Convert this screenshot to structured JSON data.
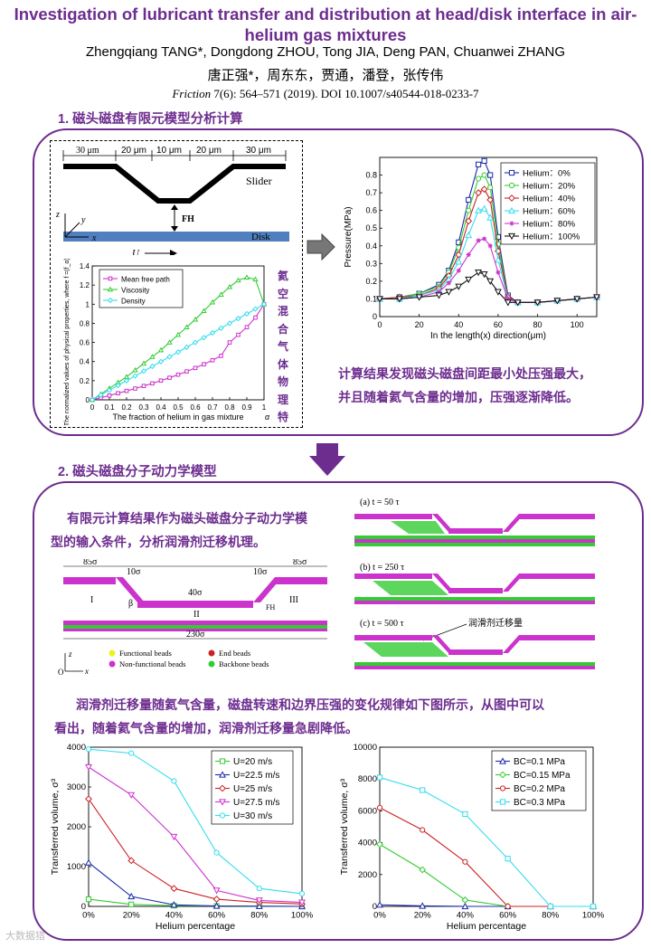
{
  "header": {
    "title": "Investigation of lubricant transfer and distribution at head/disk interface in air-helium gas mixtures",
    "authors": "Zhengqiang TANG*, Dongdong ZHOU, Tong JIA, Deng PAN, Chuanwei ZHANG",
    "authors_cn": "唐正强*，周东东，贾通，潘登，张传伟",
    "journal": "Friction",
    "citation_rest": " 7(6): 564–571 (2019). DOI 10.1007/s40544-018-0233-7"
  },
  "section1": {
    "heading": "1. 磁头磁盘有限元模型分析计算",
    "schematic": {
      "dims": [
        "30 μm",
        "20 μm",
        "10 μm",
        "20 μm",
        "30 μm"
      ],
      "slider": "Slider",
      "fh": "FH",
      "disk": "Disk",
      "u": "U",
      "z": "z",
      "y": "y",
      "x": "x"
    },
    "vertical_note": "氦空混合气体物理特",
    "conclusion_line1": "计算结果发现磁头磁盘间距最小处压强最大，",
    "conclusion_line2": "并且随着氦气含量的增加，压强逐渐降低。"
  },
  "section2": {
    "heading": "2. 磁头磁盘分子动力学模型",
    "intro_line1": "有限元计算结果作为磁头磁盘分子动力学模",
    "intro_line2": "型的输入条件，分析润滑剂迁移机理。",
    "md_dims": [
      "85σ",
      "10σ",
      "40σ",
      "10σ",
      "85σ",
      "230σ"
    ],
    "regions": [
      "I",
      "II",
      "III"
    ],
    "beta": "β",
    "fh": "FH",
    "axes": [
      "z",
      "O",
      "x"
    ],
    "legend": [
      "Functional beads",
      "End beads",
      "Non-functional beads",
      "Backbone beads"
    ],
    "snapshots": [
      "(a) t = 50 τ",
      "(b) t = 250 τ",
      "(c) t = 500 τ"
    ],
    "transfer_label": "润滑剂迁移量",
    "findings_line1": "润滑剂迁移量随氦气含量，磁盘转速和边界压强的变化规律如下图所示，从图中可以",
    "findings_line2": "看出，随着氦气含量的增加，润滑剂迁移量急剧降低。"
  },
  "watermark": "大数据猎",
  "colors": {
    "purple": "#6d2d8f",
    "magenta": "#cc33cc",
    "green": "#33cc33",
    "cyan": "#33ddee",
    "red": "#cc2222",
    "blue": "#1a2aa8",
    "disk_blue": "#4f7fbf"
  },
  "chart_data": [
    {
      "type": "line",
      "xlabel": "The fraction of helium in gas mixture",
      "xlabel_symbol": "α",
      "ylabel": "The normalized values of physical properties, where f =(f_α)/(f_air)",
      "xlim": [
        0,
        1
      ],
      "ylim": [
        0,
        1.4
      ],
      "x": [
        0,
        0.05,
        0.1,
        0.15,
        0.2,
        0.25,
        0.3,
        0.35,
        0.4,
        0.45,
        0.5,
        0.55,
        0.6,
        0.65,
        0.7,
        0.75,
        0.8,
        0.85,
        0.9,
        0.95,
        1.0
      ],
      "xticks": [
        "0",
        "0.1",
        "0.2",
        "0.3",
        "0.4",
        "0.5",
        "0.6",
        "0.7",
        "0.8",
        "0.9",
        "1"
      ],
      "yticks": [
        "0",
        "0.2",
        "0.4",
        "0.6",
        "0.8",
        "1",
        "1.2",
        "1.4"
      ],
      "series": [
        {
          "name": "Mean free path",
          "color": "#cc33cc",
          "marker": "square",
          "values": [
            0.0,
            0.022,
            0.045,
            0.069,
            0.093,
            0.118,
            0.145,
            0.172,
            0.201,
            0.231,
            0.263,
            0.297,
            0.333,
            0.372,
            0.414,
            0.46,
            0.6,
            0.68,
            0.76,
            0.86,
            1.0
          ]
        },
        {
          "name": "Viscosity",
          "color": "#33cc33",
          "marker": "triangle",
          "values": [
            0.0,
            0.06,
            0.12,
            0.18,
            0.24,
            0.31,
            0.38,
            0.45,
            0.52,
            0.6,
            0.68,
            0.76,
            0.84,
            0.93,
            1.02,
            1.1,
            1.18,
            1.25,
            1.28,
            1.26,
            1.0
          ]
        },
        {
          "name": "Density",
          "color": "#33ddee",
          "marker": "diamond",
          "values": [
            0.0,
            0.05,
            0.1,
            0.15,
            0.2,
            0.25,
            0.3,
            0.35,
            0.4,
            0.45,
            0.5,
            0.55,
            0.6,
            0.65,
            0.7,
            0.75,
            0.8,
            0.85,
            0.9,
            0.95,
            1.0
          ]
        }
      ]
    },
    {
      "type": "line",
      "xlabel": "In the length(x) direction(μm)",
      "ylabel": "Pressure(MPa)",
      "xlim": [
        0,
        110
      ],
      "ylim": [
        0,
        0.9
      ],
      "xticks": [
        "0",
        "20",
        "40",
        "60",
        "80",
        "100"
      ],
      "yticks": [
        "0",
        "0.1",
        "0.2",
        "0.3",
        "0.4",
        "0.5",
        "0.6",
        "0.7",
        "0.8"
      ],
      "x": [
        0,
        10,
        20,
        30,
        35,
        40,
        45,
        50,
        53,
        56,
        60,
        65,
        70,
        80,
        90,
        100,
        110
      ],
      "series": [
        {
          "name": "Helium：0%",
          "color": "#1a2aa8",
          "marker": "square",
          "values": [
            0.1,
            0.11,
            0.13,
            0.18,
            0.26,
            0.42,
            0.66,
            0.86,
            0.88,
            0.8,
            0.45,
            0.12,
            0.08,
            0.08,
            0.09,
            0.1,
            0.11
          ]
        },
        {
          "name": "Helium：20%",
          "color": "#33cc33",
          "marker": "circle",
          "values": [
            0.1,
            0.11,
            0.13,
            0.17,
            0.25,
            0.39,
            0.6,
            0.78,
            0.8,
            0.73,
            0.41,
            0.11,
            0.08,
            0.08,
            0.09,
            0.1,
            0.11
          ]
        },
        {
          "name": "Helium：40%",
          "color": "#cc2222",
          "marker": "diamond",
          "values": [
            0.1,
            0.11,
            0.12,
            0.16,
            0.23,
            0.35,
            0.54,
            0.7,
            0.72,
            0.66,
            0.37,
            0.11,
            0.08,
            0.08,
            0.09,
            0.1,
            0.11
          ]
        },
        {
          "name": "Helium：60%",
          "color": "#33ddee",
          "marker": "triangle",
          "values": [
            0.1,
            0.1,
            0.12,
            0.15,
            0.21,
            0.31,
            0.46,
            0.6,
            0.61,
            0.56,
            0.32,
            0.1,
            0.08,
            0.08,
            0.09,
            0.1,
            0.11
          ]
        },
        {
          "name": "Helium：80%",
          "color": "#cc33cc",
          "marker": "star",
          "values": [
            0.1,
            0.1,
            0.11,
            0.14,
            0.19,
            0.26,
            0.35,
            0.43,
            0.44,
            0.4,
            0.25,
            0.1,
            0.08,
            0.08,
            0.09,
            0.1,
            0.11
          ]
        },
        {
          "name": "Helium：100%",
          "color": "#111111",
          "marker": "triangle-down",
          "values": [
            0.1,
            0.1,
            0.11,
            0.12,
            0.14,
            0.17,
            0.21,
            0.25,
            0.24,
            0.2,
            0.14,
            0.08,
            0.08,
            0.08,
            0.09,
            0.1,
            0.11
          ]
        }
      ]
    },
    {
      "type": "line",
      "xlabel": "Helium percentage",
      "ylabel": "Transferred volume, σ³",
      "ylim": [
        0,
        4000
      ],
      "categories": [
        "0%",
        "20%",
        "40%",
        "60%",
        "80%",
        "100%"
      ],
      "yticks": [
        "0",
        "1000",
        "2000",
        "3000",
        "4000"
      ],
      "series": [
        {
          "name": "U=20 m/s",
          "color": "#33cc33",
          "marker": "square",
          "values": [
            180,
            50,
            20,
            10,
            5,
            0
          ]
        },
        {
          "name": "U=22.5 m/s",
          "color": "#1a2aa8",
          "marker": "triangle",
          "values": [
            1100,
            250,
            40,
            10,
            5,
            0
          ]
        },
        {
          "name": "U=25 m/s",
          "color": "#cc2222",
          "marker": "diamond",
          "values": [
            2700,
            1150,
            450,
            180,
            100,
            60
          ]
        },
        {
          "name": "U=27.5 m/s",
          "color": "#cc33cc",
          "marker": "triangle-down",
          "values": [
            3500,
            2800,
            1750,
            400,
            150,
            100
          ]
        },
        {
          "name": "U=30 m/s",
          "color": "#33ddee",
          "marker": "circle",
          "values": [
            3950,
            3850,
            3150,
            1350,
            450,
            320
          ]
        }
      ]
    },
    {
      "type": "line",
      "xlabel": "Helium percentage",
      "ylabel": "Transferred volume, σ³",
      "ylim": [
        0,
        10000
      ],
      "categories": [
        "0%",
        "20%",
        "40%",
        "60%",
        "80%",
        "100%"
      ],
      "yticks": [
        "0",
        "2000",
        "4000",
        "6000",
        "8000",
        "10000"
      ],
      "series": [
        {
          "name": "BC=0.1 MPa",
          "color": "#1a2aa8",
          "marker": "triangle",
          "values": [
            100,
            30,
            0,
            0,
            0,
            0
          ]
        },
        {
          "name": "BC=0.15 MPa",
          "color": "#33cc33",
          "marker": "diamond",
          "values": [
            3900,
            2300,
            400,
            0,
            0,
            0
          ]
        },
        {
          "name": "BC=0.2 MPa",
          "color": "#cc2222",
          "marker": "circle",
          "values": [
            6200,
            4800,
            2800,
            0,
            0,
            0
          ]
        },
        {
          "name": "BC=0.3 MPa",
          "color": "#33ddee",
          "marker": "square",
          "values": [
            8100,
            7300,
            5800,
            3000,
            0,
            0
          ]
        }
      ]
    }
  ]
}
